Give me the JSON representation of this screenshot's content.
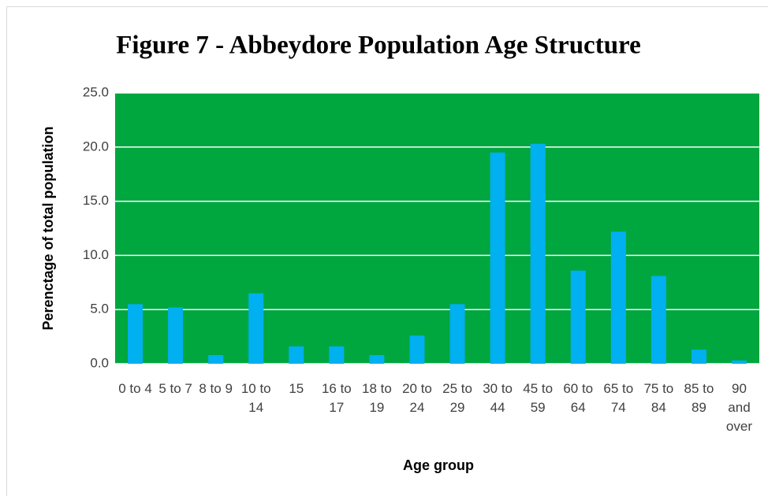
{
  "chart_data": {
    "type": "bar",
    "title": "Figure 7 - Abbeydore Population Age Structure",
    "x_label": "Age group",
    "y_label": "Perenctage of total population",
    "categories": [
      "0 to 4",
      "5 to 7",
      "8 to 9",
      "10 to 14",
      "15",
      "16 to 17",
      "18 to 19",
      "20 to 24",
      "25 to 29",
      "30 to 44",
      "45 to 59",
      "60 to 64",
      "65 to 74",
      "75 to 84",
      "85 to 89",
      "90 and over"
    ],
    "values": [
      5.5,
      5.2,
      0.8,
      6.5,
      1.6,
      1.6,
      0.8,
      2.6,
      5.5,
      19.5,
      20.3,
      8.6,
      12.2,
      8.1,
      1.3,
      0.3
    ],
    "color": "#00b0f0",
    "background": "#00a63e",
    "ylim": [
      0,
      25
    ],
    "yticks": [
      {
        "value": 0,
        "label": "0.0"
      },
      {
        "value": 5,
        "label": "5.0"
      },
      {
        "value": 10,
        "label": "10.0"
      },
      {
        "value": 15,
        "label": "15.0"
      },
      {
        "value": 20,
        "label": "20.0"
      },
      {
        "value": 25,
        "label": "25.0"
      }
    ],
    "grid": true
  }
}
